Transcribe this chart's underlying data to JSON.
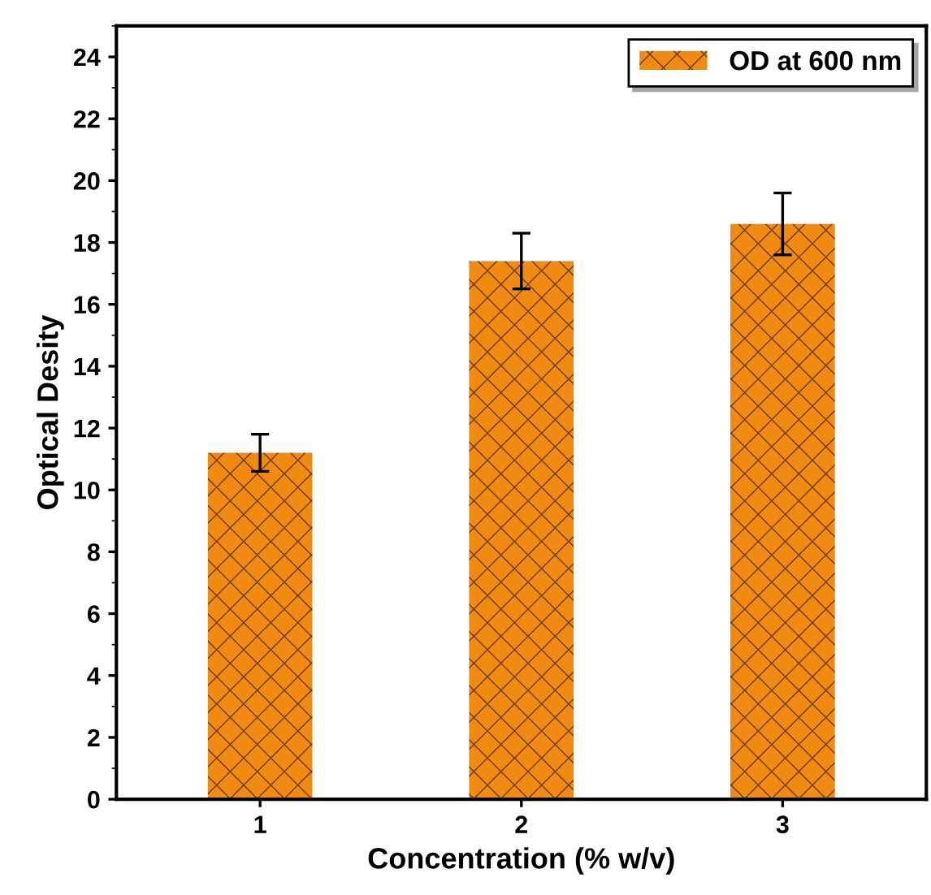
{
  "chart_data": {
    "type": "bar",
    "xlabel": "Concentration (% w/v)",
    "ylabel": "Optical Desity",
    "categories": [
      "1",
      "2",
      "3"
    ],
    "series": [
      {
        "name": "OD at 600 nm",
        "color": "#f08a10",
        "values": [
          11.2,
          17.4,
          18.6
        ],
        "errors": [
          0.6,
          0.9,
          1.0
        ]
      }
    ],
    "ylim": [
      0,
      25
    ],
    "yticks": [
      0,
      2,
      4,
      6,
      8,
      10,
      12,
      14,
      16,
      18,
      20,
      22,
      24
    ],
    "grid": false,
    "legend": "top right"
  }
}
